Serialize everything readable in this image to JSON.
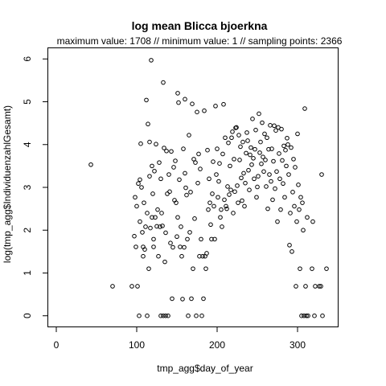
{
  "chart_data": {
    "type": "scatter",
    "title": "log mean Blicca bjoerkna",
    "subtitle": "maximum value: 1708  //  minimum value: 1  // sampling points: 2366",
    "xlabel": "tmp_agg$day_of_year",
    "ylabel": "log(tmp_agg$IndividuenzahlGesamt)",
    "xlim": [
      -10,
      350
    ],
    "ylim": [
      -0.25,
      6.25
    ],
    "xticks": [
      0,
      100,
      200,
      300
    ],
    "yticks": [
      0,
      1,
      2,
      3,
      4,
      5,
      6
    ],
    "grid": false,
    "points": [
      [
        43,
        3.53
      ],
      [
        70,
        0.69
      ],
      [
        94,
        0.69
      ],
      [
        97,
        1.86
      ],
      [
        98,
        2.77
      ],
      [
        99,
        1.61
      ],
      [
        100,
        2.56
      ],
      [
        101,
        0.69
      ],
      [
        102,
        3.09
      ],
      [
        103,
        0.0
      ],
      [
        104,
        3.18
      ],
      [
        104,
        2.2
      ],
      [
        105,
        4.02
      ],
      [
        106,
        3.0
      ],
      [
        107,
        1.95
      ],
      [
        108,
        1.61
      ],
      [
        108,
        1.39
      ],
      [
        109,
        2.64
      ],
      [
        110,
        1.55
      ],
      [
        111,
        2.08
      ],
      [
        112,
        5.04
      ],
      [
        113,
        2.4
      ],
      [
        113,
        0.0
      ],
      [
        114,
        4.48
      ],
      [
        115,
        1.1
      ],
      [
        116,
        4.06
      ],
      [
        116,
        3.26
      ],
      [
        117,
        2.05
      ],
      [
        118,
        5.97
      ],
      [
        119,
        2.3
      ],
      [
        119,
        3.5
      ],
      [
        120,
        2.85
      ],
      [
        121,
        1.79
      ],
      [
        121,
        1.61
      ],
      [
        122,
        3.38
      ],
      [
        123,
        2.3
      ],
      [
        124,
        4.01
      ],
      [
        125,
        2.09
      ],
      [
        126,
        2.48
      ],
      [
        127,
        1.39
      ],
      [
        128,
        3.58
      ],
      [
        129,
        2.08
      ],
      [
        130,
        3.2
      ],
      [
        130,
        0.0
      ],
      [
        131,
        2.4
      ],
      [
        132,
        2.1
      ],
      [
        133,
        5.45
      ],
      [
        133,
        0.0
      ],
      [
        134,
        3.92
      ],
      [
        135,
        1.26
      ],
      [
        136,
        1.94
      ],
      [
        136,
        0.0
      ],
      [
        137,
        3.85
      ],
      [
        138,
        2.85
      ],
      [
        139,
        0.0
      ],
      [
        140,
        3.3
      ],
      [
        141,
        2.9
      ],
      [
        142,
        1.7
      ],
      [
        143,
        3.84
      ],
      [
        144,
        0.4
      ],
      [
        145,
        1.6
      ],
      [
        146,
        3.47
      ],
      [
        147,
        2.7
      ],
      [
        148,
        3.62
      ],
      [
        149,
        2.64
      ],
      [
        150,
        1.85
      ],
      [
        151,
        5.2
      ],
      [
        151,
        2.3
      ],
      [
        152,
        4.98
      ],
      [
        153,
        3.18
      ],
      [
        154,
        1.61
      ],
      [
        155,
        2.08
      ],
      [
        156,
        1.39
      ],
      [
        157,
        0.39
      ],
      [
        158,
        3.9
      ],
      [
        159,
        1.6
      ],
      [
        160,
        5.06
      ],
      [
        160,
        3.33
      ],
      [
        161,
        2.99
      ],
      [
        162,
        2.82
      ],
      [
        163,
        1.79
      ],
      [
        164,
        0.0
      ],
      [
        165,
        4.22
      ],
      [
        166,
        1.95
      ],
      [
        167,
        2.89
      ],
      [
        168,
        0.4
      ],
      [
        169,
        4.95
      ],
      [
        170,
        1.1
      ],
      [
        171,
        3.66
      ],
      [
        172,
        2.27
      ],
      [
        173,
        3.58
      ],
      [
        174,
        0.0
      ],
      [
        175,
        4.76
      ],
      [
        176,
        3.1
      ],
      [
        177,
        3.78
      ],
      [
        178,
        1.39
      ],
      [
        179,
        3.43
      ],
      [
        180,
        1.79
      ],
      [
        181,
        0.0
      ],
      [
        182,
        1.39
      ],
      [
        183,
        0.4
      ],
      [
        184,
        4.79
      ],
      [
        185,
        1.39
      ],
      [
        186,
        1.1
      ],
      [
        187,
        1.46
      ],
      [
        188,
        3.87
      ],
      [
        189,
        2.48
      ],
      [
        190,
        3.2
      ],
      [
        191,
        2.64
      ],
      [
        192,
        2.13
      ],
      [
        193,
        1.79
      ],
      [
        194,
        2.85
      ],
      [
        195,
        3.6
      ],
      [
        196,
        2.56
      ],
      [
        197,
        1.79
      ],
      [
        198,
        4.9
      ],
      [
        199,
        3.3
      ],
      [
        200,
        3.9
      ],
      [
        201,
        2.77
      ],
      [
        202,
        3.14
      ],
      [
        203,
        3.56
      ],
      [
        204,
        2.3
      ],
      [
        205,
        2.48
      ],
      [
        206,
        2.08
      ],
      [
        207,
        3.78
      ],
      [
        208,
        4.94
      ],
      [
        209,
        2.71
      ],
      [
        210,
        4.16
      ],
      [
        211,
        2.56
      ],
      [
        212,
        2.5
      ],
      [
        213,
        3.02
      ],
      [
        214,
        4.04
      ],
      [
        215,
        2.83
      ],
      [
        216,
        3.5
      ],
      [
        217,
        2.94
      ],
      [
        218,
        4.16
      ],
      [
        219,
        4.3
      ],
      [
        220,
        2.4
      ],
      [
        221,
        3.66
      ],
      [
        222,
        2.9
      ],
      [
        223,
        4.39
      ],
      [
        224,
        4.4
      ],
      [
        225,
        3.04
      ],
      [
        226,
        2.64
      ],
      [
        227,
        4.22
      ],
      [
        228,
        3.64
      ],
      [
        229,
        3.95
      ],
      [
        230,
        3.22
      ],
      [
        231,
        2.69
      ],
      [
        232,
        4.06
      ],
      [
        233,
        3.33
      ],
      [
        234,
        2.56
      ],
      [
        235,
        3.1
      ],
      [
        236,
        3.8
      ],
      [
        237,
        4.28
      ],
      [
        238,
        4.09
      ],
      [
        239,
        3.4
      ],
      [
        240,
        2.94
      ],
      [
        241,
        3.76
      ],
      [
        242,
        3.93
      ],
      [
        243,
        3.53
      ],
      [
        244,
        4.6
      ],
      [
        245,
        3.68
      ],
      [
        246,
        3.2
      ],
      [
        247,
        3.89
      ],
      [
        248,
        4.34
      ],
      [
        249,
        2.77
      ],
      [
        250,
        3.01
      ],
      [
        251,
        3.26
      ],
      [
        252,
        4.72
      ],
      [
        253,
        3.81
      ],
      [
        254,
        4.06
      ],
      [
        255,
        3.55
      ],
      [
        256,
        4.51
      ],
      [
        257,
        3.71
      ],
      [
        258,
        3.37
      ],
      [
        259,
        4.25
      ],
      [
        260,
        3.64
      ],
      [
        261,
        3.02
      ],
      [
        262,
        4.16
      ],
      [
        263,
        2.5
      ],
      [
        264,
        3.89
      ],
      [
        265,
        3.3
      ],
      [
        266,
        4.45
      ],
      [
        267,
        3.14
      ],
      [
        268,
        3.9
      ],
      [
        269,
        2.71
      ],
      [
        270,
        3.61
      ],
      [
        271,
        4.44
      ],
      [
        272,
        2.97
      ],
      [
        273,
        4.33
      ],
      [
        274,
        3.37
      ],
      [
        275,
        2.2
      ],
      [
        276,
        4.4
      ],
      [
        277,
        3.79
      ],
      [
        278,
        3.2
      ],
      [
        279,
        2.48
      ],
      [
        280,
        4.36
      ],
      [
        281,
        3.63
      ],
      [
        282,
        3.09
      ],
      [
        283,
        3.97
      ],
      [
        284,
        2.77
      ],
      [
        285,
        3.87
      ],
      [
        286,
        3.5
      ],
      [
        287,
        4.15
      ],
      [
        288,
        4.0
      ],
      [
        289,
        3.3
      ],
      [
        290,
        1.65
      ],
      [
        291,
        2.4
      ],
      [
        292,
        3.93
      ],
      [
        293,
        1.5
      ],
      [
        294,
        2.89
      ],
      [
        295,
        3.66
      ],
      [
        296,
        2.56
      ],
      [
        297,
        3.47
      ],
      [
        298,
        0.69
      ],
      [
        299,
        2.2
      ],
      [
        300,
        4.25
      ],
      [
        301,
        3.06
      ],
      [
        302,
        2.48
      ],
      [
        303,
        1.1
      ],
      [
        304,
        2.77
      ],
      [
        305,
        0.0
      ],
      [
        306,
        2.64
      ],
      [
        307,
        2.0
      ],
      [
        308,
        0.0
      ],
      [
        309,
        4.84
      ],
      [
        310,
        0.69
      ],
      [
        311,
        0.0
      ],
      [
        312,
        2.3
      ],
      [
        313,
        0.0
      ],
      [
        318,
        1.1
      ],
      [
        319,
        2.2
      ],
      [
        321,
        0.0
      ],
      [
        322,
        0.69
      ],
      [
        327,
        0.69
      ],
      [
        329,
        0.69
      ],
      [
        330,
        3.3
      ],
      [
        331,
        0.0
      ],
      [
        336,
        1.1
      ]
    ]
  }
}
